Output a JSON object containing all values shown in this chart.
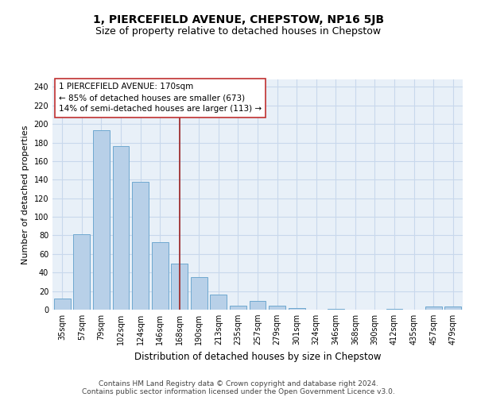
{
  "title": "1, PIERCEFIELD AVENUE, CHEPSTOW, NP16 5JB",
  "subtitle": "Size of property relative to detached houses in Chepstow",
  "xlabel": "Distribution of detached houses by size in Chepstow",
  "ylabel": "Number of detached properties",
  "categories": [
    "35sqm",
    "57sqm",
    "79sqm",
    "102sqm",
    "124sqm",
    "146sqm",
    "168sqm",
    "190sqm",
    "213sqm",
    "235sqm",
    "257sqm",
    "279sqm",
    "301sqm",
    "324sqm",
    "346sqm",
    "368sqm",
    "390sqm",
    "412sqm",
    "435sqm",
    "457sqm",
    "479sqm"
  ],
  "values": [
    12,
    81,
    193,
    176,
    138,
    73,
    50,
    35,
    16,
    4,
    9,
    4,
    2,
    0,
    1,
    0,
    0,
    1,
    0,
    3,
    3
  ],
  "bar_color": "#b8d0e8",
  "bar_edge_color": "#6fa8d0",
  "marker_x": "168sqm",
  "marker_color": "#a03030",
  "annotation_line1": "1 PIERCEFIELD AVENUE: 170sqm",
  "annotation_line2": "← 85% of detached houses are smaller (673)",
  "annotation_line3": "14% of semi-detached houses are larger (113) →",
  "annotation_box_color": "#ffffff",
  "annotation_box_edge_color": "#c03030",
  "ylim": [
    0,
    248
  ],
  "yticks": [
    0,
    20,
    40,
    60,
    80,
    100,
    120,
    140,
    160,
    180,
    200,
    220,
    240
  ],
  "grid_color": "#c8d8ec",
  "background_color": "#e8f0f8",
  "footer_line1": "Contains HM Land Registry data © Crown copyright and database right 2024.",
  "footer_line2": "Contains public sector information licensed under the Open Government Licence v3.0.",
  "title_fontsize": 10,
  "subtitle_fontsize": 9,
  "xlabel_fontsize": 8.5,
  "ylabel_fontsize": 8,
  "tick_fontsize": 7,
  "annotation_fontsize": 7.5,
  "footer_fontsize": 6.5
}
